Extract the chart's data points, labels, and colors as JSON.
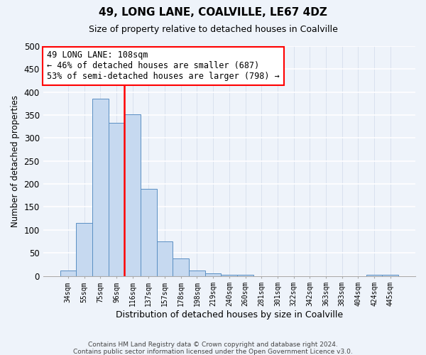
{
  "title": "49, LONG LANE, COALVILLE, LE67 4DZ",
  "subtitle": "Size of property relative to detached houses in Coalville",
  "xlabel": "Distribution of detached houses by size in Coalville",
  "ylabel": "Number of detached properties",
  "bar_labels": [
    "34sqm",
    "55sqm",
    "75sqm",
    "96sqm",
    "116sqm",
    "137sqm",
    "157sqm",
    "178sqm",
    "198sqm",
    "219sqm",
    "240sqm",
    "260sqm",
    "281sqm",
    "301sqm",
    "322sqm",
    "342sqm",
    "363sqm",
    "383sqm",
    "404sqm",
    "424sqm",
    "445sqm"
  ],
  "bar_values": [
    12,
    115,
    385,
    333,
    352,
    190,
    75,
    38,
    12,
    5,
    2,
    2,
    0,
    0,
    0,
    0,
    0,
    0,
    0,
    2,
    2
  ],
  "bar_color": "#c6d9f0",
  "bar_edge_color": "#5a8fc3",
  "vline_x_index": 4,
  "vline_color": "red",
  "annotation_title": "49 LONG LANE: 108sqm",
  "annotation_line1": "← 46% of detached houses are smaller (687)",
  "annotation_line2": "53% of semi-detached houses are larger (798) →",
  "annotation_box_color": "white",
  "annotation_box_edge": "red",
  "ylim": [
    0,
    500
  ],
  "yticks": [
    0,
    50,
    100,
    150,
    200,
    250,
    300,
    350,
    400,
    450,
    500
  ],
  "footnote1": "Contains HM Land Registry data © Crown copyright and database right 2024.",
  "footnote2": "Contains public sector information licensed under the Open Government Licence v3.0.",
  "bg_color": "#eef3fa"
}
